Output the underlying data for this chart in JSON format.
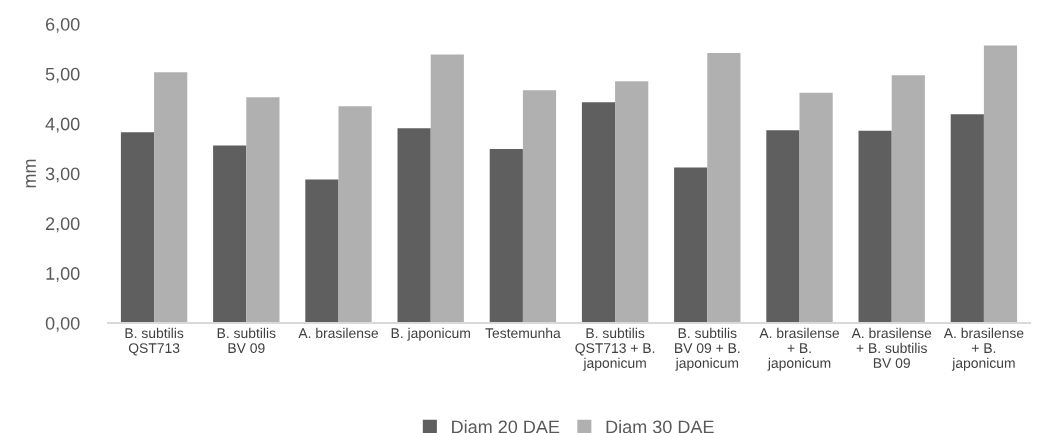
{
  "chart_data": {
    "type": "bar",
    "ylabel": "mm",
    "categories": [
      "B. subtilis\nQST713",
      "B. subtilis\nBV 09",
      "A. brasilense",
      "B. japonicum",
      "Testemunha",
      "B. subtilis\nQST713 + B.\njaponicum",
      "B. subtilis\nBV 09 + B.\njaponicum",
      "A. brasilense\n+ B.\njaponicum",
      "A. brasilense\n+ B. subtilis\nBV 09",
      "A. brasilense\n+ B.\njaponicum"
    ],
    "series": [
      {
        "name": "Diam 20 DAE",
        "color": "#5f5f5f",
        "values": [
          3.83,
          3.56,
          2.88,
          3.91,
          3.49,
          4.43,
          3.12,
          3.87,
          3.86,
          4.19
        ]
      },
      {
        "name": "Diam 30 DAE",
        "color": "#b0b0b0",
        "values": [
          5.03,
          4.53,
          4.35,
          5.39,
          4.67,
          4.85,
          5.42,
          4.62,
          4.97,
          5.57
        ]
      }
    ],
    "ylim": [
      0,
      6
    ],
    "yticks": [
      {
        "value": 0,
        "label": "0,00"
      },
      {
        "value": 1,
        "label": "1,00"
      },
      {
        "value": 2,
        "label": "2,00"
      },
      {
        "value": 3,
        "label": "3,00"
      },
      {
        "value": 4,
        "label": "4,00"
      },
      {
        "value": 5,
        "label": "5,00"
      },
      {
        "value": 6,
        "label": "6,00"
      }
    ],
    "grid": false,
    "legend": "bottom"
  }
}
